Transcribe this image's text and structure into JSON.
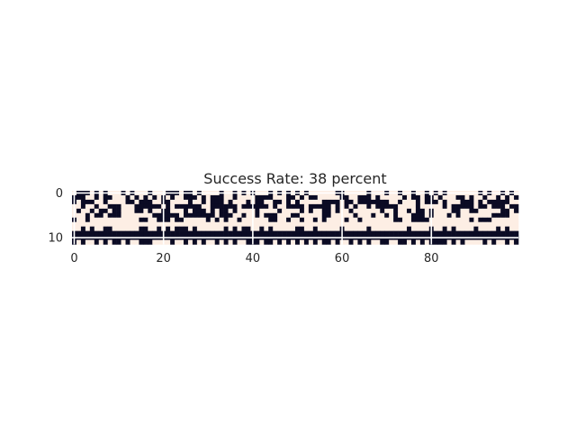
{
  "chart_data": {
    "type": "heatmap",
    "title": "Success Rate: 38 percent",
    "xlabel": "",
    "ylabel": "",
    "n_cols": 100,
    "n_rows": 12,
    "x_ticks": [
      "0",
      "20",
      "40",
      "60",
      "80"
    ],
    "y_ticks": [
      "0",
      "10"
    ],
    "x_tick_values": [
      0,
      20,
      40,
      60,
      80
    ],
    "y_tick_values": [
      0,
      10
    ],
    "xlim": [
      -0.5,
      99.5
    ],
    "ylim": [
      11.5,
      -0.5
    ],
    "colors": {
      "high": "#fdeee4",
      "low": "#0b0b24"
    },
    "grid": true,
    "rows": [
      "1000101011101011101110001001011110110101011101010101011111100111110111011011011010101111111010110101",
      "0001101001110101010101011000101000110111100001110010100111110011000101111101001001011100101101101010",
      "0100011011110010001100111101101000101110100110010101111100001001000000011011101000101110001010000011",
      "1101101100011100000010100000011000000100000010110000100000101010110100000111101111101000001001000100",
      "1011010010011100101100111010001010010111101111011110101100101101111110110110100101111001100111110010",
      "1110100100011111110000001000000010001101101000111001111100111110111011010111000101110101111111000011",
      "0110111111111110011000100111110101011011111100110110110101111011011111110011000011111111101000111111",
      "1111111111111111111111111111111111111111111111111111111111111111111111111111111111111111111111111111",
      "1101011001111110011010100010111111010100110101111100110111110111110111111110111101101011110111101011",
      "0000000000000000000000000000000000000000000000000000000000000000000000000000000000000000000000000000",
      "0000000000000000000000000000000000000000000000000000000000000000000000000000000000000000000000000000",
      "0101101010010110001111011010101101010110001001010101010100101101010110011001010100001010111101011010"
    ]
  }
}
